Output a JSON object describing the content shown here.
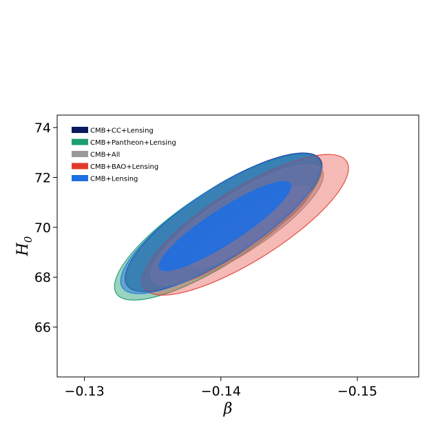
{
  "chart_data": {
    "type": "contour",
    "xlabel": "β",
    "ylabel": "H0",
    "xlim": [
      -0.128,
      -0.1545
    ],
    "ylim": [
      64.0,
      74.5
    ],
    "x_ticks": [
      -0.13,
      -0.14,
      -0.15
    ],
    "x_tick_labels": [
      "−0.13",
      "−0.14",
      "−0.15"
    ],
    "y_ticks": [
      66,
      68,
      70,
      72,
      74
    ],
    "y_tick_labels": [
      "66",
      "68",
      "70",
      "72",
      "74"
    ],
    "grid": false,
    "legend_position": "top-left",
    "series": [
      {
        "name": "CMB+CC+Lensing",
        "color": "#0a1a5c",
        "outer": {
          "cx": -0.1402,
          "cy": 70.2,
          "width": 0.0169,
          "height": 2.8,
          "angle": 33,
          "alpha": 0.55
        },
        "inner": null
      },
      {
        "name": "CMB+Pantheon+Lensing",
        "color": "#1e9e6e",
        "outer": {
          "cx": -0.1398,
          "cy": 70.0,
          "width": 0.0178,
          "height": 2.9,
          "angle": 33,
          "alpha": 0.45
        },
        "inner": null
      },
      {
        "name": "CMB+All",
        "color": "#999999",
        "outer": {
          "cx": -0.1412,
          "cy": 70.1,
          "width": 0.0148,
          "height": 2.3,
          "angle": 33,
          "alpha": 0.5
        },
        "inner": {
          "cx": -0.1422,
          "cy": 70.0,
          "width": 0.0104,
          "height": 1.25,
          "angle": 33,
          "alpha": 0.7
        }
      },
      {
        "name": "CMB+BAO+Lensing",
        "color": "#e3392c",
        "outer": {
          "cx": -0.1418,
          "cy": 70.1,
          "width": 0.0175,
          "height": 2.9,
          "angle": 32,
          "alpha": 0.35
        },
        "inner": null
      },
      {
        "name": "CMB+Lensing",
        "color": "#1c6fe4",
        "outer": {
          "cx": -0.14,
          "cy": 70.15,
          "width": 0.0172,
          "height": 2.75,
          "angle": 33,
          "alpha": 0.45
        },
        "inner": {
          "cx": -0.1403,
          "cy": 70.05,
          "width": 0.0114,
          "height": 1.35,
          "angle": 33,
          "alpha": 0.85
        }
      }
    ]
  }
}
